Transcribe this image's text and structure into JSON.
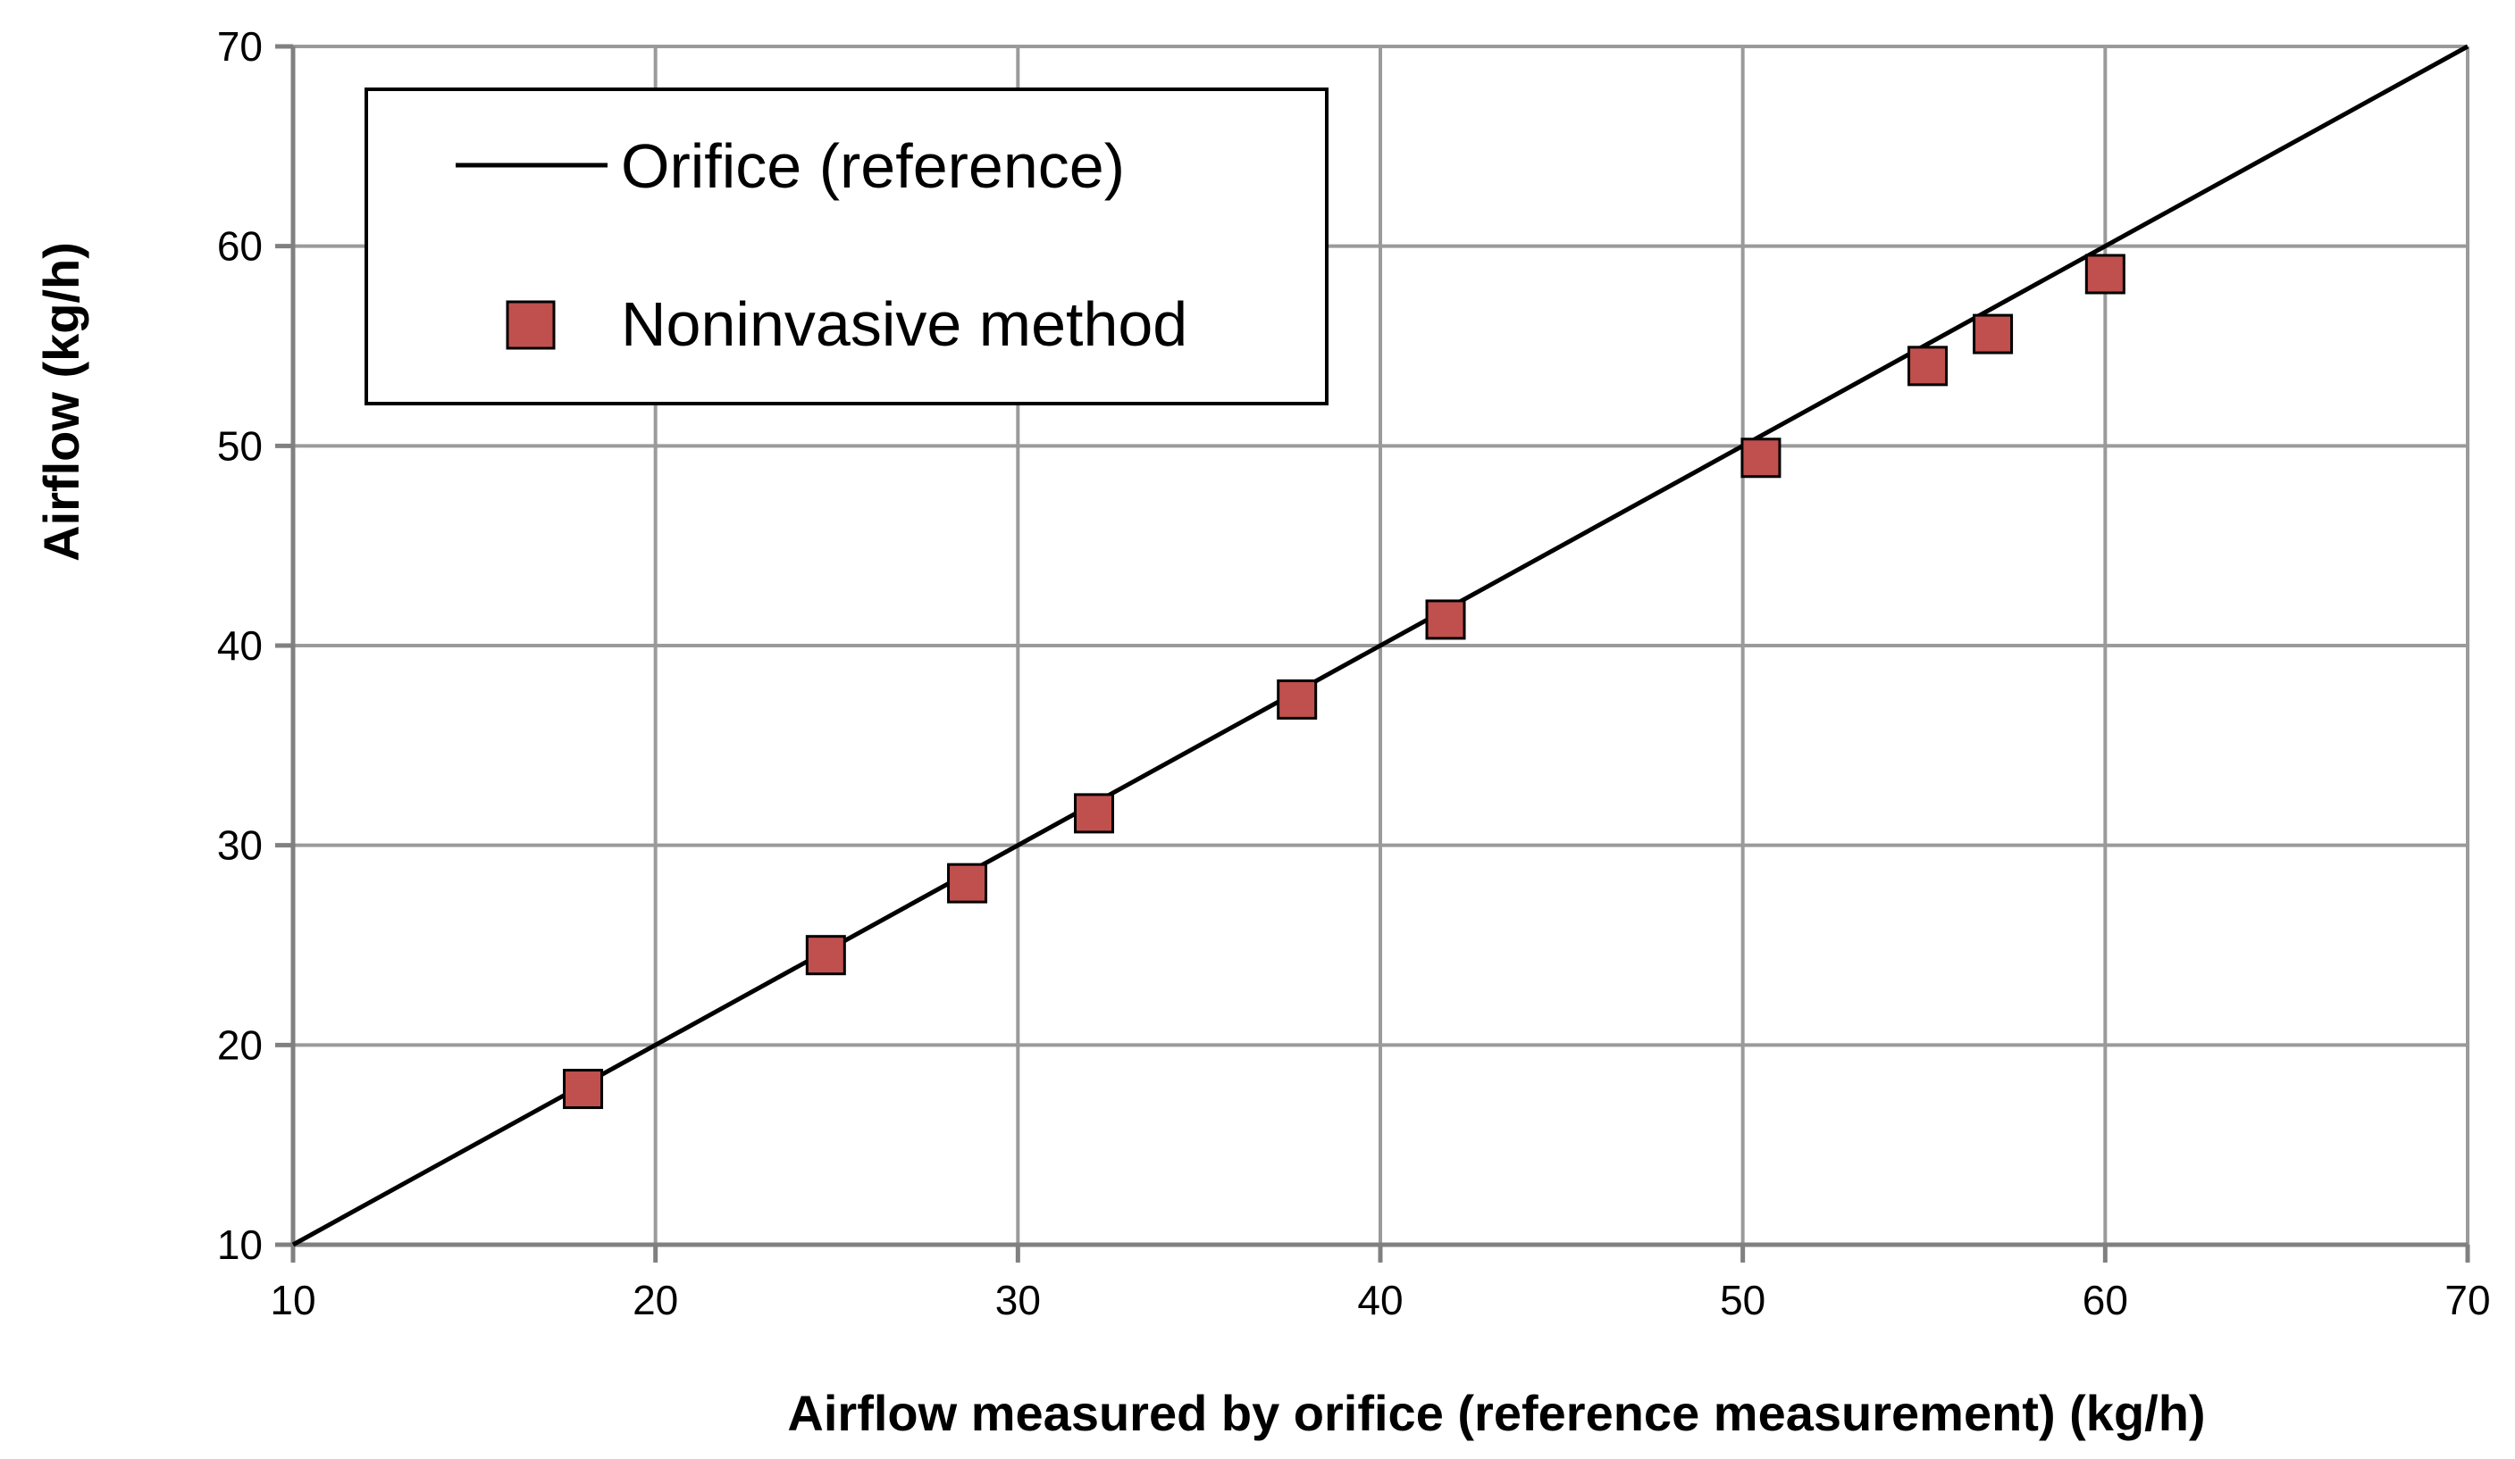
{
  "chart_data": {
    "type": "scatter",
    "xlabel": "Airflow measured by orifice (reference measurement) (kg/h)",
    "ylabel": "Airflow (kg/h)",
    "xlim": [
      10,
      70
    ],
    "ylim": [
      10,
      70
    ],
    "xticks": [
      10,
      20,
      30,
      40,
      50,
      60,
      70
    ],
    "yticks": [
      10,
      20,
      30,
      40,
      50,
      60,
      70
    ],
    "grid": true,
    "legend_position": "top-left",
    "series": [
      {
        "name": "Orifice (reference)",
        "kind": "line",
        "color": "#000000",
        "points": [
          [
            10,
            10
          ],
          [
            70,
            70
          ]
        ]
      },
      {
        "name": "Noninvasive method",
        "kind": "scatter",
        "marker": "square",
        "color": "#c0504d",
        "points": [
          [
            18.0,
            17.8
          ],
          [
            24.7,
            24.5
          ],
          [
            28.6,
            28.1
          ],
          [
            32.1,
            31.6
          ],
          [
            37.7,
            37.3
          ],
          [
            41.8,
            41.3
          ],
          [
            50.5,
            49.4
          ],
          [
            55.1,
            54.0
          ],
          [
            56.9,
            55.6
          ],
          [
            60.0,
            58.6
          ]
        ]
      }
    ]
  }
}
